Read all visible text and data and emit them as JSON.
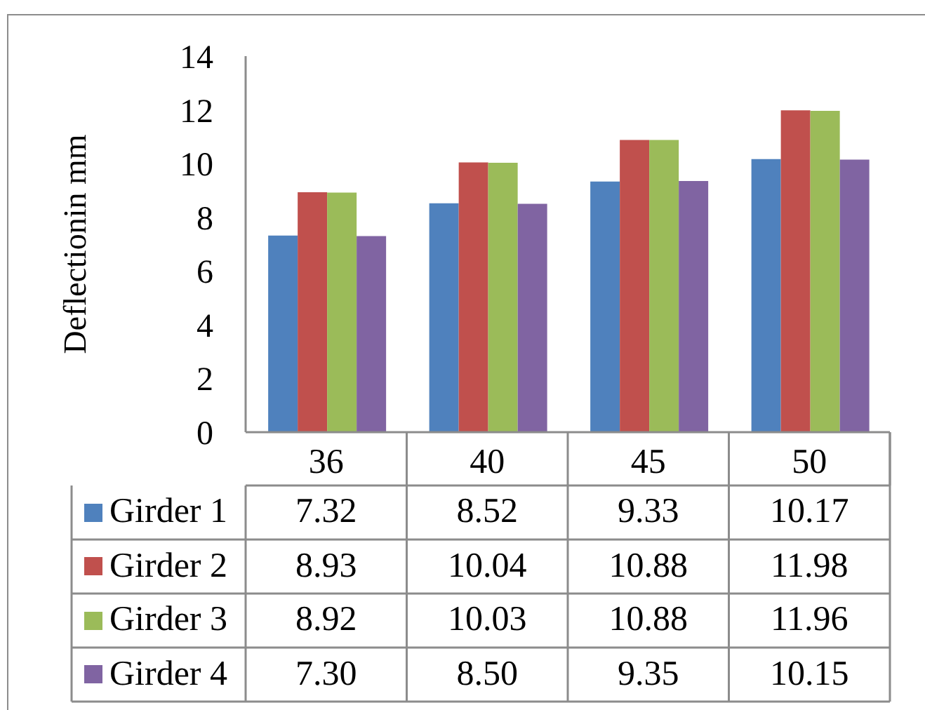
{
  "chart_data": {
    "type": "bar",
    "ylabel": "Deflectionin mm",
    "categories": [
      "36",
      "40",
      "45",
      "50"
    ],
    "series": [
      {
        "name": "Girder 1",
        "color": "#4f81bd",
        "values": [
          7.32,
          8.52,
          9.33,
          10.17
        ],
        "value_labels": [
          "7.32",
          "8.52",
          "9.33",
          "10.17"
        ]
      },
      {
        "name": "Girder 2",
        "color": "#c0504d",
        "values": [
          8.93,
          10.04,
          10.88,
          11.98
        ],
        "value_labels": [
          "8.93",
          "10.04",
          "10.88",
          "11.98"
        ]
      },
      {
        "name": "Girder 3",
        "color": "#9bbb59",
        "values": [
          8.92,
          10.03,
          10.88,
          11.96
        ],
        "value_labels": [
          "8.92",
          "10.03",
          "10.88",
          "11.96"
        ]
      },
      {
        "name": "Girder 4",
        "color": "#8064a2",
        "values": [
          7.3,
          8.5,
          9.35,
          10.15
        ],
        "value_labels": [
          "7.30",
          "8.50",
          "9.35",
          "10.15"
        ]
      }
    ],
    "ylim": [
      0,
      14
    ],
    "yticks": [
      0,
      2,
      4,
      6,
      8,
      10,
      12,
      14
    ],
    "legend": "bottom"
  }
}
